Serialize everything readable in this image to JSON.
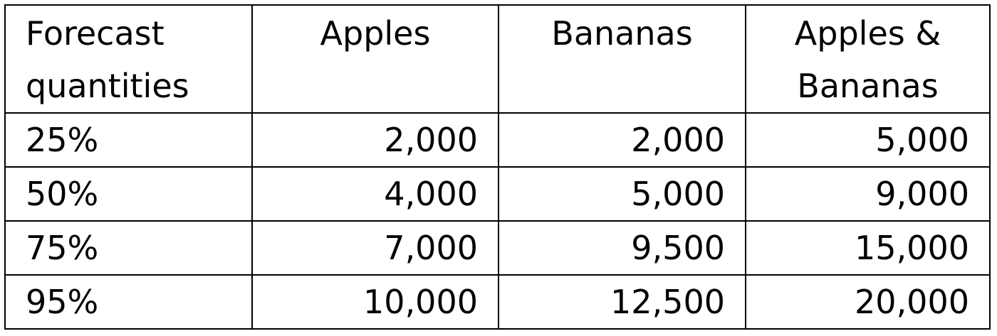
{
  "table": {
    "header": {
      "corner_line1": "Forecast",
      "corner_line2": "quantities",
      "col1": "Apples",
      "col2": "Bananas",
      "col3_line1": "Apples &",
      "col3_line2": "Bananas"
    },
    "rows": [
      {
        "label": "25%",
        "apples": "2,000",
        "bananas": "2,000",
        "both": "5,000"
      },
      {
        "label": "50%",
        "apples": "4,000",
        "bananas": "5,000",
        "both": "9,000"
      },
      {
        "label": "75%",
        "apples": "7,000",
        "bananas": "9,500",
        "both": "15,000"
      },
      {
        "label": "95%",
        "apples": "10,000",
        "bananas": "12,500",
        "both": "20,000"
      }
    ]
  }
}
